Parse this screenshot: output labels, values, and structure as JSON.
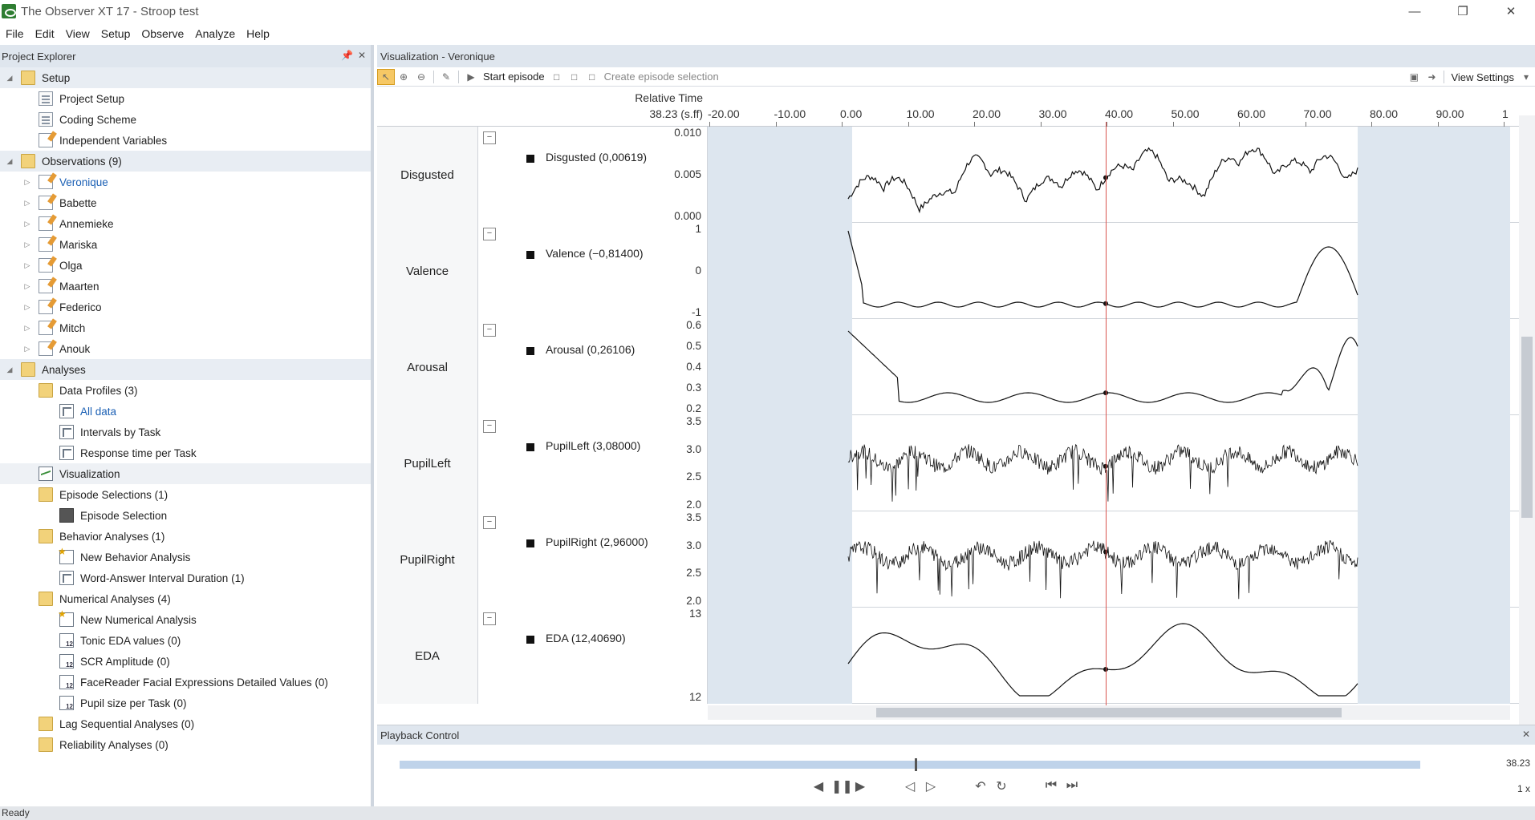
{
  "window": {
    "title": "The Observer XT 17 - Stroop test"
  },
  "menu": [
    "File",
    "Edit",
    "View",
    "Setup",
    "Observe",
    "Analyze",
    "Help"
  ],
  "project_explorer": {
    "title": "Project Explorer",
    "setup": {
      "label": "Setup",
      "items": [
        "Project Setup",
        "Coding Scheme",
        "Independent Variables"
      ]
    },
    "observations": {
      "label": "Observations (9)",
      "items": [
        "Veronique",
        "Babette",
        "Annemieke",
        "Mariska",
        "Olga",
        "Maarten",
        "Federico",
        "Mitch",
        "Anouk"
      ]
    },
    "analyses": {
      "label": "Analyses",
      "data_profiles": {
        "label": "Data Profiles (3)",
        "items": [
          "All data",
          "Intervals by Task",
          "Response time per Task"
        ]
      },
      "visualization": "Visualization",
      "episode_selections": {
        "label": "Episode Selections (1)",
        "items": [
          "Episode Selection"
        ]
      },
      "behavior_analyses": {
        "label": "Behavior Analyses (1)",
        "items": [
          "New Behavior Analysis",
          "Word-Answer Interval Duration (1)"
        ]
      },
      "numerical_analyses": {
        "label": "Numerical Analyses (4)",
        "items": [
          "New Numerical Analysis",
          "Tonic EDA values (0)",
          "SCR Amplitude (0)",
          "FaceReader Facial Expressions Detailed Values (0)",
          "Pupil size per Task (0)"
        ]
      },
      "lag_sequential": "Lag Sequential Analyses (0)",
      "reliability": "Reliability Analyses (0)"
    }
  },
  "visualization": {
    "title": "Visualization - Veronique",
    "toolbar": {
      "start_episode": "Start episode",
      "create_selection": "Create episode selection",
      "view_settings": "View Settings"
    },
    "relative_time_label": "Relative Time",
    "relative_time_value": "38.23 (s.ff)",
    "time_ticks": [
      "-20.00",
      "-10.00",
      "0.00",
      "10.00",
      "20.00",
      "30.00",
      "40.00",
      "50.00",
      "60.00",
      "70.00",
      "80.00",
      "90.00",
      "1"
    ],
    "rows": [
      {
        "name": "Disgusted",
        "legend": "Disgusted  (0,00619)",
        "yticks": [
          "0.010",
          "0.005",
          "0.000"
        ]
      },
      {
        "name": "Valence",
        "legend": "Valence  (−0,81400)",
        "yticks": [
          "1",
          "0",
          "-1"
        ]
      },
      {
        "name": "Arousal",
        "legend": "Arousal  (0,26106)",
        "yticks": [
          "0.6",
          "0.5",
          "0.4",
          "0.3",
          "0.2"
        ]
      },
      {
        "name": "PupilLeft",
        "legend": "PupilLeft  (3,08000)",
        "yticks": [
          "3.5",
          "3.0",
          "2.5",
          "2.0"
        ]
      },
      {
        "name": "PupilRight",
        "legend": "PupilRight  (2,96000)",
        "yticks": [
          "3.5",
          "3.0",
          "2.5",
          "2.0"
        ]
      },
      {
        "name": "EDA",
        "legend": "EDA  (12,40690)",
        "yticks": [
          "13",
          "12"
        ]
      }
    ],
    "cursor_time": 38.23
  },
  "playback": {
    "title": "Playback Control",
    "time": "38.23",
    "speed": "1 x",
    "position": 0.505
  },
  "status": "Ready",
  "colors": {
    "accent": "#1a5fb4",
    "cursor": "#d9534f",
    "panel_header": "#dfe6ee"
  }
}
